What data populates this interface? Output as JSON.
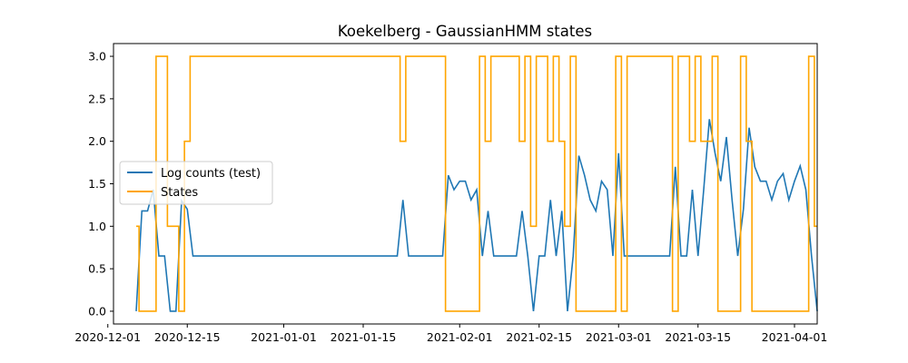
{
  "chart_data": {
    "type": "line",
    "title": "Koekelberg - GaussianHMM states",
    "xlabel": "",
    "ylabel": "",
    "x_type": "date",
    "xlim": [
      "2020-12-02",
      "2021-04-05"
    ],
    "ylim": [
      -0.15,
      3.15
    ],
    "x_ticks": [
      "2020-12-01",
      "2020-12-15",
      "2021-01-01",
      "2021-01-15",
      "2021-02-01",
      "2021-02-15",
      "2021-03-01",
      "2021-03-15",
      "2021-04-01"
    ],
    "y_ticks": [
      0.0,
      0.5,
      1.0,
      1.5,
      2.0,
      2.5,
      3.0
    ],
    "y_tick_labels": [
      "0.0",
      "0.5",
      "1.0",
      "1.5",
      "2.0",
      "2.5",
      "3.0"
    ],
    "grid": false,
    "legend_position": "center-left",
    "series": [
      {
        "name": "Log counts (test)",
        "color": "#1f77b4",
        "style": "line",
        "points": [
          [
            "2020-12-06",
            0.0
          ],
          [
            "2020-12-07",
            1.18
          ],
          [
            "2020-12-08",
            1.18
          ],
          [
            "2020-12-09",
            1.43
          ],
          [
            "2020-12-10",
            0.65
          ],
          [
            "2020-12-11",
            0.65
          ],
          [
            "2020-12-12",
            0.0
          ],
          [
            "2020-12-13",
            0.0
          ],
          [
            "2020-12-14",
            1.3
          ],
          [
            "2020-12-15",
            1.2
          ],
          [
            "2020-12-16",
            0.65
          ],
          [
            "2021-01-21",
            0.65
          ],
          [
            "2021-01-22",
            1.31
          ],
          [
            "2021-01-23",
            0.65
          ],
          [
            "2021-01-29",
            0.65
          ],
          [
            "2021-01-30",
            1.6
          ],
          [
            "2021-01-31",
            1.43
          ],
          [
            "2021-02-01",
            1.53
          ],
          [
            "2021-02-02",
            1.53
          ],
          [
            "2021-02-03",
            1.31
          ],
          [
            "2021-02-04",
            1.43
          ],
          [
            "2021-02-05",
            0.65
          ],
          [
            "2021-02-06",
            1.18
          ],
          [
            "2021-02-07",
            0.65
          ],
          [
            "2021-02-11",
            0.65
          ],
          [
            "2021-02-12",
            1.18
          ],
          [
            "2021-02-13",
            0.65
          ],
          [
            "2021-02-14",
            0.0
          ],
          [
            "2021-02-15",
            0.65
          ],
          [
            "2021-02-16",
            0.65
          ],
          [
            "2021-02-17",
            1.31
          ],
          [
            "2021-02-18",
            0.65
          ],
          [
            "2021-02-19",
            1.18
          ],
          [
            "2021-02-20",
            0.0
          ],
          [
            "2021-02-21",
            0.65
          ],
          [
            "2021-02-22",
            1.83
          ],
          [
            "2021-02-23",
            1.6
          ],
          [
            "2021-02-24",
            1.31
          ],
          [
            "2021-02-25",
            1.18
          ],
          [
            "2021-02-26",
            1.53
          ],
          [
            "2021-02-27",
            1.43
          ],
          [
            "2021-02-28",
            0.65
          ],
          [
            "2021-03-01",
            1.86
          ],
          [
            "2021-03-02",
            0.65
          ],
          [
            "2021-03-10",
            0.65
          ],
          [
            "2021-03-11",
            1.7
          ],
          [
            "2021-03-12",
            0.65
          ],
          [
            "2021-03-13",
            0.65
          ],
          [
            "2021-03-14",
            1.43
          ],
          [
            "2021-03-15",
            0.65
          ],
          [
            "2021-03-16",
            1.43
          ],
          [
            "2021-03-17",
            2.26
          ],
          [
            "2021-03-18",
            1.86
          ],
          [
            "2021-03-19",
            1.53
          ],
          [
            "2021-03-20",
            2.05
          ],
          [
            "2021-03-21",
            1.31
          ],
          [
            "2021-03-22",
            0.65
          ],
          [
            "2021-03-23",
            1.2
          ],
          [
            "2021-03-24",
            2.16
          ],
          [
            "2021-03-25",
            1.7
          ],
          [
            "2021-03-26",
            1.53
          ],
          [
            "2021-03-27",
            1.53
          ],
          [
            "2021-03-28",
            1.31
          ],
          [
            "2021-03-29",
            1.53
          ],
          [
            "2021-03-30",
            1.62
          ],
          [
            "2021-03-31",
            1.31
          ],
          [
            "2021-04-01",
            1.53
          ],
          [
            "2021-04-02",
            1.71
          ],
          [
            "2021-04-03",
            1.43
          ],
          [
            "2021-04-04",
            0.65
          ],
          [
            "2021-04-05",
            0.0
          ]
        ]
      },
      {
        "name": "States",
        "color": "#ffa500",
        "style": "step-mid",
        "points": [
          [
            "2020-12-06",
            1
          ],
          [
            "2020-12-07",
            0
          ],
          [
            "2020-12-08",
            0
          ],
          [
            "2020-12-09",
            0
          ],
          [
            "2020-12-10",
            3
          ],
          [
            "2020-12-11",
            3
          ],
          [
            "2020-12-12",
            1
          ],
          [
            "2020-12-13",
            1
          ],
          [
            "2020-12-14",
            0
          ],
          [
            "2020-12-15",
            2
          ],
          [
            "2020-12-16",
            3
          ],
          [
            "2021-01-21",
            3
          ],
          [
            "2021-01-22",
            2
          ],
          [
            "2021-01-23",
            3
          ],
          [
            "2021-01-29",
            3
          ],
          [
            "2021-01-30",
            0
          ],
          [
            "2021-02-04",
            0
          ],
          [
            "2021-02-05",
            3
          ],
          [
            "2021-02-06",
            2
          ],
          [
            "2021-02-07",
            3
          ],
          [
            "2021-02-11",
            3
          ],
          [
            "2021-02-12",
            2
          ],
          [
            "2021-02-13",
            3
          ],
          [
            "2021-02-14",
            1
          ],
          [
            "2021-02-15",
            3
          ],
          [
            "2021-02-16",
            3
          ],
          [
            "2021-02-17",
            2
          ],
          [
            "2021-02-18",
            3
          ],
          [
            "2021-02-19",
            2
          ],
          [
            "2021-02-20",
            1
          ],
          [
            "2021-02-21",
            3
          ],
          [
            "2021-02-22",
            0
          ],
          [
            "2021-02-28",
            0
          ],
          [
            "2021-03-01",
            3
          ],
          [
            "2021-03-02",
            0
          ],
          [
            "2021-03-03",
            3
          ],
          [
            "2021-03-10",
            3
          ],
          [
            "2021-03-11",
            0
          ],
          [
            "2021-03-12",
            3
          ],
          [
            "2021-03-13",
            3
          ],
          [
            "2021-03-14",
            2
          ],
          [
            "2021-03-15",
            3
          ],
          [
            "2021-03-16",
            2
          ],
          [
            "2021-03-17",
            2
          ],
          [
            "2021-03-18",
            3
          ],
          [
            "2021-03-19",
            0
          ],
          [
            "2021-03-22",
            0
          ],
          [
            "2021-03-23",
            3
          ],
          [
            "2021-03-24",
            2
          ],
          [
            "2021-03-25",
            0
          ],
          [
            "2021-04-03",
            0
          ],
          [
            "2021-04-04",
            3
          ],
          [
            "2021-04-05",
            1
          ]
        ]
      }
    ]
  }
}
